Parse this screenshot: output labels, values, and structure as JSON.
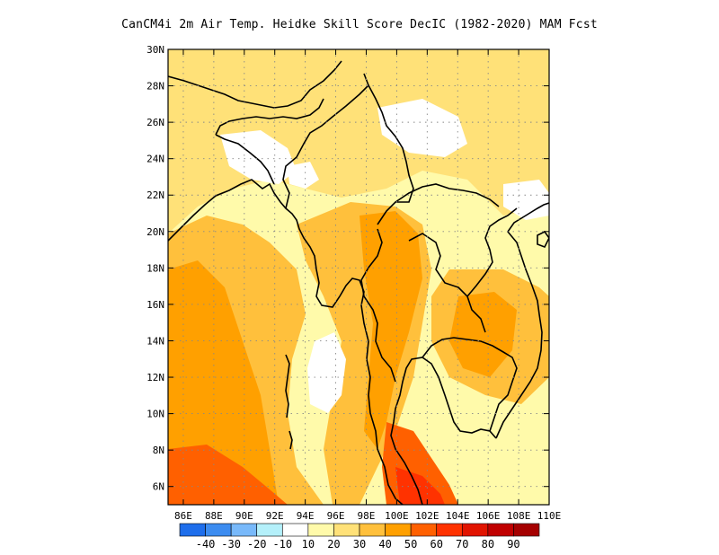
{
  "title": "CanCM4i  2m Air Temp. Heidke Skill Score DecIC (1982-2020) MAM Fcst",
  "map": {
    "region": "Southeast Asia",
    "lon_range": [
      85,
      110
    ],
    "lat_range": [
      5,
      30
    ],
    "lon_ticks": [
      "86E",
      "88E",
      "90E",
      "92E",
      "94E",
      "96E",
      "98E",
      "100E",
      "102E",
      "104E",
      "106E",
      "108E",
      "110E"
    ],
    "lat_ticks": [
      "6N",
      "8N",
      "10N",
      "12N",
      "14N",
      "16N",
      "18N",
      "20N",
      "22N",
      "24N",
      "26N",
      "28N",
      "30N"
    ],
    "grid": "dotted"
  },
  "colorbar": {
    "labels": [
      "-40",
      "-30",
      "-20",
      "-10",
      "10",
      "20",
      "30",
      "40",
      "50",
      "60",
      "70",
      "80",
      "90"
    ],
    "colors": [
      "#1e6eeb",
      "#3c8cf0",
      "#78b9fa",
      "#b4f0fa",
      "#ffffff",
      "#fffaaa",
      "#ffe178",
      "#ffc03c",
      "#ffa000",
      "#ff6000",
      "#ff3200",
      "#e11400",
      "#c00000",
      "#a50000"
    ]
  },
  "field": {
    "description_levels": "class index 0..13 into colorbar.colors"
  }
}
